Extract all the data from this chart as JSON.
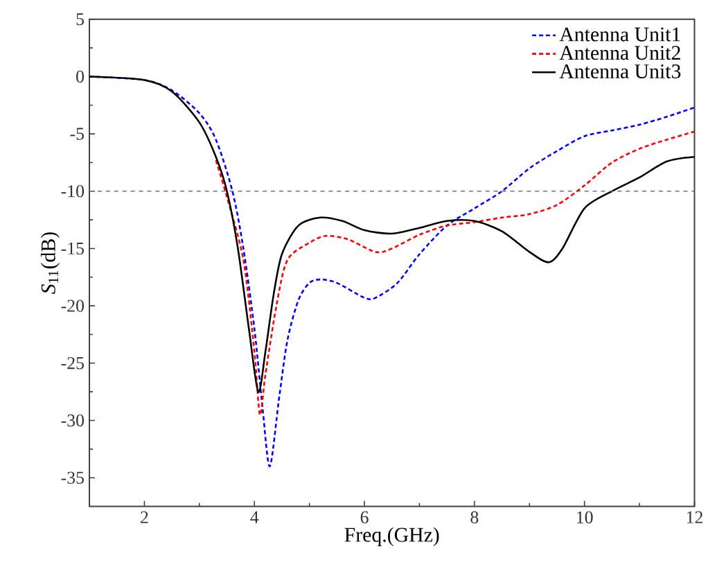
{
  "chart_data": {
    "type": "line",
    "xlabel": "Freq.(GHz)",
    "ylabel": "*S*$_{11}$(dB)",
    "xlim": [
      1,
      12
    ],
    "xticks": [
      2,
      4,
      6,
      8,
      10,
      12
    ],
    "ylim": [
      -37.5,
      5
    ],
    "yticks": [
      -35,
      -30,
      -25,
      -20,
      -15,
      -10,
      -5,
      0,
      5
    ],
    "legend": "top right",
    "grid": false,
    "ref_lines": [
      {
        "axis": "y",
        "value": -10,
        "color": "#707070",
        "line_style": "dashed"
      }
    ],
    "series": [
      {
        "name": "Antenna Unit1",
        "color": "#0000ff",
        "line_style": "dashed",
        "x": [
          1,
          2,
          2.5,
          3,
          3.3,
          3.6,
          3.8,
          4.0,
          4.15,
          4.28,
          4.45,
          4.6,
          4.8,
          5.0,
          5.2,
          5.5,
          6.0,
          6.2,
          6.6,
          7.0,
          7.5,
          8.0,
          8.5,
          9.0,
          9.5,
          10,
          10.5,
          11,
          11.5,
          12
        ],
        "values": [
          0,
          -0.3,
          -1.2,
          -3.2,
          -5.5,
          -10,
          -15,
          -22,
          -29,
          -34,
          -28,
          -23,
          -19.5,
          -18,
          -17.7,
          -18,
          -19.3,
          -19.3,
          -18,
          -15.5,
          -13,
          -11.5,
          -10,
          -8,
          -6.5,
          -5.2,
          -4.7,
          -4.2,
          -3.5,
          -2.7
        ]
      },
      {
        "name": "Antenna Unit2",
        "color": "#ff0000",
        "line_style": "dashed",
        "x": [
          3.3,
          3.5,
          3.8,
          4.0,
          4.1,
          4.2,
          4.4,
          4.6,
          5.0,
          5.3,
          5.7,
          6.2,
          6.5,
          7,
          7.5,
          8,
          8.5,
          9,
          9.5,
          10,
          10.5,
          11,
          11.5,
          12
        ],
        "values": [
          -7.3,
          -10.5,
          -16,
          -24,
          -29.5,
          -26,
          -20,
          -16,
          -14.5,
          -13.9,
          -14.2,
          -15.3,
          -15,
          -13.8,
          -13,
          -12.7,
          -12.3,
          -12,
          -11.2,
          -9.5,
          -7.5,
          -6.3,
          -5.5,
          -4.8
        ]
      },
      {
        "name": "Antenna Unit3",
        "color": "#000000",
        "line_style": "solid",
        "x": [
          1,
          2,
          2.5,
          3,
          3.3,
          3.5,
          3.7,
          3.9,
          4.07,
          4.2,
          4.35,
          4.5,
          4.8,
          5.2,
          5.6,
          6.0,
          6.5,
          7,
          7.5,
          8,
          8.5,
          9.0,
          9.35,
          9.6,
          10,
          10.5,
          11,
          11.5,
          12
        ],
        "values": [
          0,
          -0.3,
          -1.3,
          -4,
          -7,
          -10,
          -15,
          -22,
          -27.5,
          -24,
          -19,
          -15.5,
          -13,
          -12.3,
          -12.6,
          -13.4,
          -13.7,
          -13.2,
          -12.6,
          -12.6,
          -13.5,
          -15.3,
          -16.2,
          -15,
          -11.5,
          -10,
          -8.8,
          -7.4,
          -7
        ]
      }
    ]
  }
}
